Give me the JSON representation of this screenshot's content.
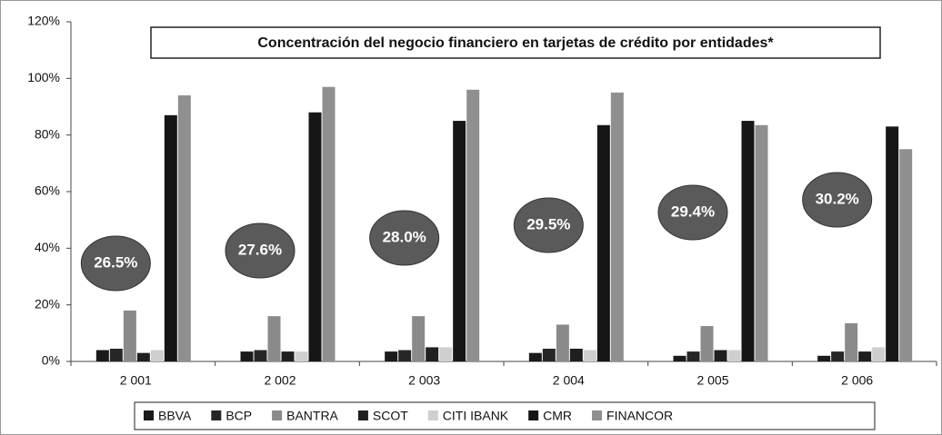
{
  "chart_data": {
    "type": "bar",
    "title": "Concentración del negocio financiero en tarjetas de crédito por entidades*",
    "categories": [
      "2 001",
      "2 002",
      "2 003",
      "2 004",
      "2 005",
      "2 006"
    ],
    "series": [
      {
        "name": "BBVA",
        "color": "#1a1a1a",
        "values": [
          4,
          3.5,
          3.5,
          3,
          2,
          2
        ]
      },
      {
        "name": "BCP",
        "color": "#262626",
        "values": [
          4.5,
          4,
          4,
          4.5,
          3.5,
          3.5
        ]
      },
      {
        "name": "BANTRA",
        "color": "#8a8a8a",
        "values": [
          18,
          16,
          16,
          13,
          12.5,
          13.5
        ]
      },
      {
        "name": "SCOT",
        "color": "#1f1f1f",
        "values": [
          3,
          3.5,
          5,
          4.5,
          4,
          3.5
        ]
      },
      {
        "name": "CITI IBANK",
        "color": "#cfcfcf",
        "values": [
          4,
          3.5,
          5,
          4,
          4,
          5
        ]
      },
      {
        "name": "CMR",
        "color": "#161616",
        "values": [
          87,
          88,
          85,
          83.5,
          85,
          83
        ]
      },
      {
        "name": "FINANCOR",
        "color": "#8f8f8f",
        "values": [
          94,
          97,
          96,
          95,
          83.5,
          75
        ]
      }
    ],
    "annotations": [
      "26.5%",
      "27.6%",
      "28.0%",
      "29.5%",
      "29.4%",
      "30.2%"
    ],
    "ylim": [
      0,
      120
    ],
    "yticks": [
      {
        "value": 0,
        "label": "0%"
      },
      {
        "value": 20,
        "label": "20%"
      },
      {
        "value": 40,
        "label": "40%"
      },
      {
        "value": 60,
        "label": "60%"
      },
      {
        "value": 80,
        "label": "80%"
      },
      {
        "value": 100,
        "label": "100%"
      },
      {
        "value": 120,
        "label": "120%"
      }
    ],
    "grid": false,
    "legend": "bottom"
  }
}
